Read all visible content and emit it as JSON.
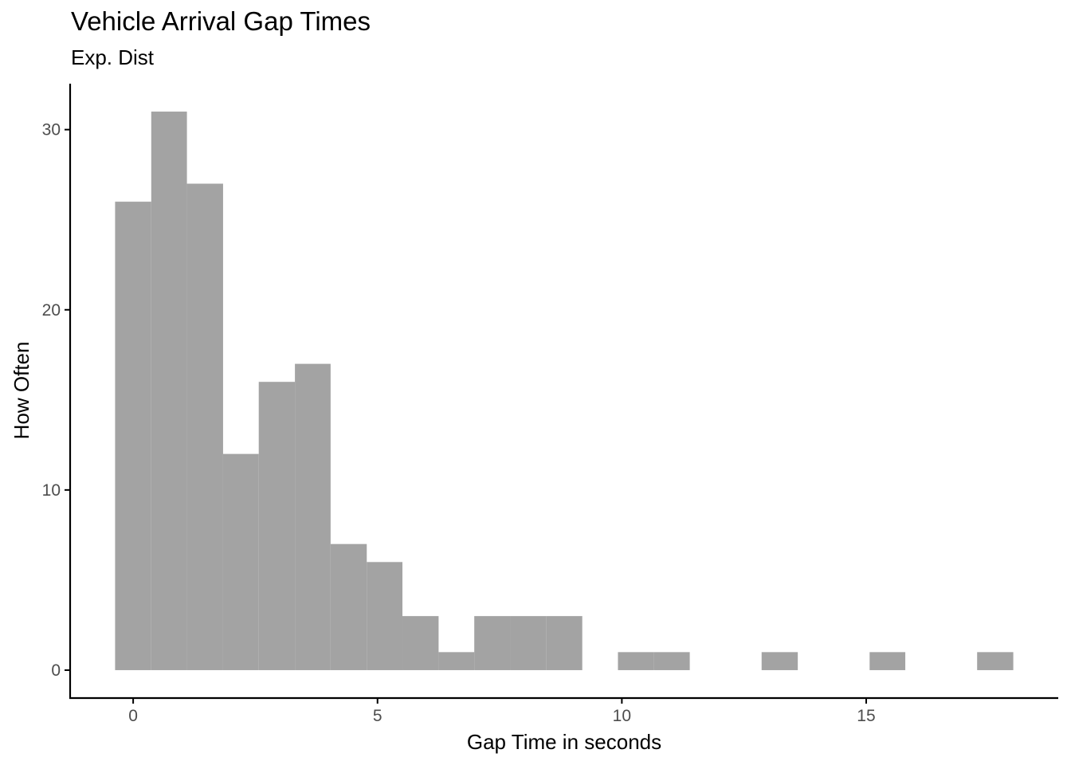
{
  "chart_data": {
    "type": "bar",
    "subtype": "histogram",
    "title": "Vehicle Arrival Gap Times",
    "subtitle": "Exp. Dist",
    "xlabel": "Gap Time in seconds",
    "ylabel": "How Often",
    "bin_width": 0.735,
    "bins": [
      {
        "x_start": -0.37,
        "x_end": 0.37,
        "count": 26
      },
      {
        "x_start": 0.37,
        "x_end": 1.1,
        "count": 31
      },
      {
        "x_start": 1.1,
        "x_end": 1.84,
        "count": 27
      },
      {
        "x_start": 1.84,
        "x_end": 2.57,
        "count": 12
      },
      {
        "x_start": 2.57,
        "x_end": 3.31,
        "count": 16
      },
      {
        "x_start": 3.31,
        "x_end": 4.04,
        "count": 17
      },
      {
        "x_start": 4.04,
        "x_end": 4.78,
        "count": 7
      },
      {
        "x_start": 4.78,
        "x_end": 5.51,
        "count": 6
      },
      {
        "x_start": 5.51,
        "x_end": 6.25,
        "count": 3
      },
      {
        "x_start": 6.25,
        "x_end": 6.98,
        "count": 1
      },
      {
        "x_start": 6.98,
        "x_end": 7.72,
        "count": 3
      },
      {
        "x_start": 7.72,
        "x_end": 8.45,
        "count": 3
      },
      {
        "x_start": 8.45,
        "x_end": 9.19,
        "count": 3
      },
      {
        "x_start": 9.19,
        "x_end": 9.92,
        "count": 0
      },
      {
        "x_start": 9.92,
        "x_end": 10.66,
        "count": 1
      },
      {
        "x_start": 10.66,
        "x_end": 11.39,
        "count": 1
      },
      {
        "x_start": 11.39,
        "x_end": 12.13,
        "count": 0
      },
      {
        "x_start": 12.13,
        "x_end": 12.86,
        "count": 0
      },
      {
        "x_start": 12.86,
        "x_end": 13.6,
        "count": 1
      },
      {
        "x_start": 13.6,
        "x_end": 14.33,
        "count": 0
      },
      {
        "x_start": 14.33,
        "x_end": 15.07,
        "count": 0
      },
      {
        "x_start": 15.07,
        "x_end": 15.8,
        "count": 1
      },
      {
        "x_start": 15.8,
        "x_end": 16.54,
        "count": 0
      },
      {
        "x_start": 16.54,
        "x_end": 17.27,
        "count": 0
      },
      {
        "x_start": 17.27,
        "x_end": 18.01,
        "count": 1
      }
    ],
    "x_ticks": [
      0,
      5,
      10,
      15
    ],
    "y_ticks": [
      0,
      10,
      20,
      30
    ],
    "xlim": [
      -1.29,
      18.93
    ],
    "ylim": [
      -1.55,
      32.55
    ],
    "grid": false,
    "legend": "none",
    "bar_color": "#a3a3a3",
    "axis_color": "#000000",
    "tick_label_color": "#4d4d4d"
  }
}
